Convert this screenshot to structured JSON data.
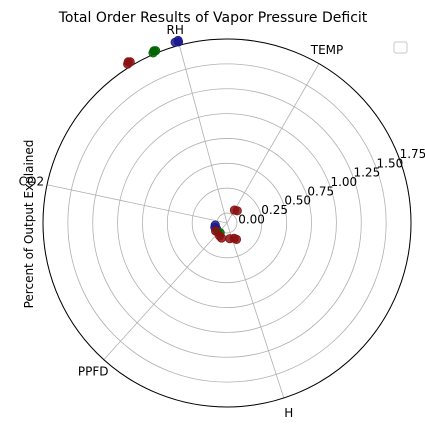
{
  "chart_data": {
    "type": "scatter",
    "projection": "polar",
    "title": "Total Order Results of Vapor Pressure Deficit",
    "ylabel": "Percent of Output Explained",
    "categories": [
      "TEMP",
      "RH",
      "CO2",
      "PPFD",
      "H"
    ],
    "category_angles_deg": [
      60,
      105,
      168,
      228,
      288
    ],
    "radial_ticks": [
      "0.00",
      "0.25",
      "0.50",
      "0.75",
      "1.00",
      "1.25",
      "1.50",
      "1.75"
    ],
    "radial_tick_values": [
      0,
      0.25,
      0.5,
      0.75,
      1.0,
      1.25,
      1.5,
      1.75
    ],
    "rlim": [
      -0.1,
      1.75
    ],
    "radial_label_angle_deg": 22,
    "grid": true,
    "legend": {
      "placement": "top-right",
      "entries": []
    },
    "series": [
      {
        "color": "#1a1a8c",
        "points": [
          {
            "theta_deg": 105,
            "r": 1.8
          },
          {
            "theta_deg": 105,
            "r": 1.785
          },
          {
            "theta_deg": 106,
            "r": 1.79
          },
          {
            "theta_deg": 190,
            "r": 0.02
          },
          {
            "theta_deg": 200,
            "r": 0.03
          },
          {
            "theta_deg": 210,
            "r": 0.02
          }
        ]
      },
      {
        "color": "#006400",
        "points": [
          {
            "theta_deg": 113,
            "r": 1.78
          },
          {
            "theta_deg": 113.5,
            "r": 1.765
          },
          {
            "theta_deg": 112.5,
            "r": 1.775
          },
          {
            "theta_deg": 225,
            "r": 0.03
          },
          {
            "theta_deg": 235,
            "r": 0.02
          }
        ]
      },
      {
        "color": "#8b1010",
        "points": [
          {
            "theta_deg": 121.5,
            "r": 1.8
          },
          {
            "theta_deg": 122,
            "r": 1.785
          },
          {
            "theta_deg": 121,
            "r": 1.79
          },
          {
            "theta_deg": 60,
            "r": 0.05
          },
          {
            "theta_deg": 50,
            "r": 0.06
          },
          {
            "theta_deg": 240,
            "r": 0.05
          },
          {
            "theta_deg": 250,
            "r": 0.06
          },
          {
            "theta_deg": 280,
            "r": 0.06
          },
          {
            "theta_deg": 295,
            "r": 0.07
          },
          {
            "theta_deg": 300,
            "r": 0.09
          },
          {
            "theta_deg": 215,
            "r": 0.04
          }
        ]
      }
    ]
  }
}
